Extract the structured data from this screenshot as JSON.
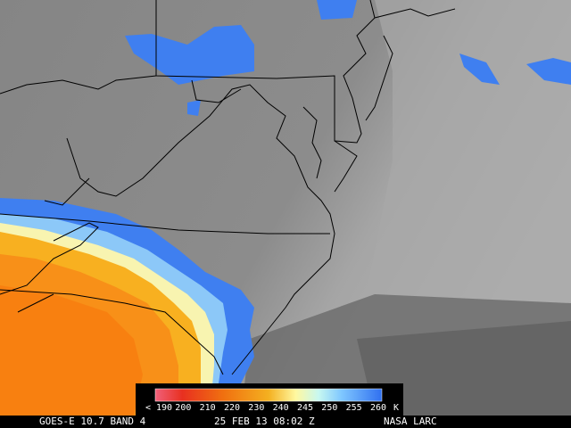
{
  "colorbar": {
    "labels": [
      "< 190",
      "200",
      "210",
      "220",
      "230",
      "240",
      "245",
      "250",
      "255",
      "260"
    ],
    "unit": "K"
  },
  "caption": {
    "satellite": "GOES-E 10.7 BAND 4",
    "time": "25 FEB 13 08:02 Z",
    "source": "NASA LARC"
  }
}
